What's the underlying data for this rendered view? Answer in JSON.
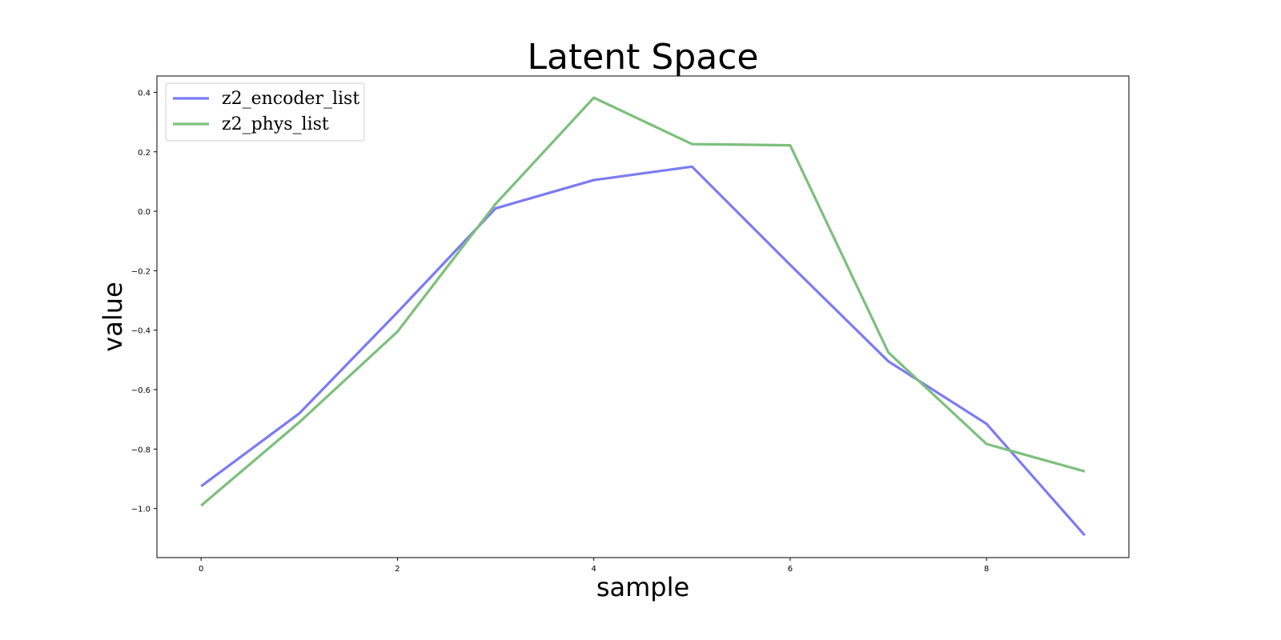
{
  "chart_data": {
    "type": "line",
    "title": "Latent Space",
    "xlabel": "sample",
    "ylabel": "value",
    "x": [
      0,
      1,
      2,
      3,
      4,
      5,
      6,
      7,
      8,
      9
    ],
    "xlim": [
      -0.45,
      9.45
    ],
    "ylim": [
      -1.165,
      0.455
    ],
    "xticks": [
      0,
      2,
      4,
      6,
      8
    ],
    "yticks": [
      -1.0,
      -0.8,
      -0.6,
      -0.4,
      -0.2,
      0.0,
      0.2,
      0.4
    ],
    "ytick_labels": [
      "−1.0",
      "−0.8",
      "−0.6",
      "−0.4",
      "−0.2",
      "0.0",
      "0.2",
      "0.4"
    ],
    "xtick_labels": [
      "0",
      "2",
      "4",
      "6",
      "8"
    ],
    "grid": false,
    "legend_position": "top-left",
    "series": [
      {
        "name": "z2_encoder_list",
        "color": "#7b7bf4",
        "values": [
          -0.925,
          -0.68,
          -0.34,
          0.01,
          0.105,
          0.15,
          -0.18,
          -0.505,
          -0.715,
          -1.09
        ]
      },
      {
        "name": "z2_phys_list",
        "color": "#7dbf7d",
        "values": [
          -0.99,
          -0.71,
          -0.405,
          0.025,
          0.382,
          0.226,
          0.222,
          -0.475,
          -0.783,
          -0.875
        ]
      }
    ]
  }
}
